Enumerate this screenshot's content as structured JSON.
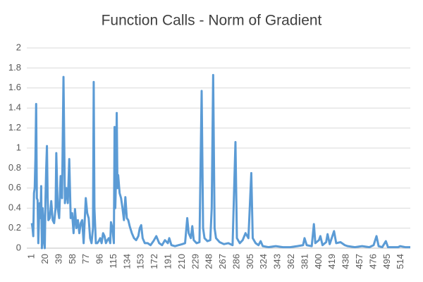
{
  "chart_data": {
    "type": "line",
    "title": "Function Calls - Norm of Gradient",
    "color": "#5b9bd5",
    "grid": true,
    "x": [
      1,
      2,
      3,
      4,
      5,
      6,
      7,
      8,
      9,
      10,
      11,
      12,
      13,
      14,
      15,
      16,
      17,
      18,
      19,
      20,
      21,
      22,
      23,
      24,
      26,
      28,
      30,
      32,
      34,
      35,
      37,
      39,
      41,
      43,
      45,
      47,
      49,
      51,
      53,
      55,
      57,
      59,
      61,
      63,
      65,
      67,
      69,
      71,
      73,
      74,
      76,
      78,
      80,
      82,
      84,
      86,
      87,
      88,
      90,
      92,
      94,
      96,
      98,
      100,
      102,
      104,
      106,
      108,
      110,
      111,
      113,
      115,
      116,
      117,
      118,
      119,
      120,
      121,
      123,
      125,
      127,
      129,
      131,
      133,
      135,
      137,
      140,
      143,
      146,
      149,
      151,
      153,
      155,
      158,
      162,
      166,
      170,
      174,
      178,
      182,
      186,
      190,
      192,
      195,
      200,
      205,
      210,
      214,
      217,
      219,
      222,
      224,
      226,
      230,
      234,
      237,
      239,
      241,
      245,
      249,
      251,
      253,
      255,
      257,
      262,
      268,
      274,
      280,
      284,
      286,
      290,
      294,
      298,
      302,
      306,
      308,
      312,
      316,
      319,
      322,
      330,
      340,
      350,
      360,
      370,
      378,
      380,
      383,
      390,
      393,
      395,
      400,
      402,
      405,
      410,
      412,
      415,
      421,
      424,
      430,
      436,
      440,
      450,
      460,
      470,
      476,
      480,
      483,
      488,
      493,
      496,
      500,
      510,
      513,
      520,
      527
    ],
    "values": [
      0.25,
      0.2,
      0.12,
      0.55,
      0.6,
      0.9,
      1.44,
      0.5,
      0.48,
      0.05,
      0.3,
      0.45,
      0.3,
      0.62,
      0.0,
      0.4,
      0.3,
      0.05,
      0.0,
      0.5,
      0.8,
      1.02,
      0.5,
      0.28,
      0.3,
      0.47,
      0.28,
      0.25,
      0.4,
      0.95,
      0.4,
      0.3,
      0.72,
      0.5,
      1.71,
      0.45,
      0.6,
      0.45,
      0.89,
      0.3,
      0.35,
      0.15,
      0.39,
      0.2,
      0.28,
      0.15,
      0.25,
      0.28,
      0.05,
      0.2,
      0.5,
      0.35,
      0.3,
      0.1,
      0.05,
      0.2,
      1.66,
      0.4,
      0.05,
      0.05,
      0.07,
      0.1,
      0.05,
      0.15,
      0.12,
      0.05,
      0.08,
      0.1,
      0.05,
      0.26,
      0.2,
      0.05,
      1.21,
      0.4,
      0.7,
      1.35,
      0.6,
      0.73,
      0.55,
      0.5,
      0.4,
      0.28,
      0.51,
      0.3,
      0.28,
      0.22,
      0.15,
      0.1,
      0.08,
      0.12,
      0.2,
      0.23,
      0.1,
      0.05,
      0.05,
      0.03,
      0.07,
      0.12,
      0.05,
      0.03,
      0.08,
      0.05,
      0.1,
      0.03,
      0.02,
      0.03,
      0.04,
      0.05,
      0.3,
      0.15,
      0.1,
      0.22,
      0.08,
      0.05,
      0.06,
      1.57,
      0.2,
      0.1,
      0.07,
      0.08,
      0.4,
      1.73,
      0.2,
      0.1,
      0.06,
      0.04,
      0.05,
      0.03,
      1.06,
      0.1,
      0.05,
      0.08,
      0.15,
      0.1,
      0.75,
      0.1,
      0.05,
      0.03,
      0.07,
      0.02,
      0.01,
      0.02,
      0.01,
      0.01,
      0.02,
      0.03,
      0.1,
      0.03,
      0.02,
      0.24,
      0.05,
      0.08,
      0.12,
      0.03,
      0.06,
      0.14,
      0.04,
      0.17,
      0.05,
      0.06,
      0.03,
      0.02,
      0.01,
      0.02,
      0.01,
      0.03,
      0.12,
      0.02,
      0.01,
      0.07,
      0.01,
      0.01,
      0.01,
      0.02,
      0.01,
      0.01
    ],
    "xlim": [
      -6,
      527
    ],
    "xticks": [
      1,
      20,
      39,
      58,
      77,
      96,
      115,
      134,
      153,
      172,
      191,
      210,
      229,
      248,
      267,
      286,
      305,
      324,
      343,
      362,
      381,
      400,
      419,
      438,
      457,
      476,
      495,
      514
    ],
    "ylim": [
      0,
      2
    ],
    "yticks": [
      0,
      0.2,
      0.4,
      0.6,
      0.8,
      1,
      1.2,
      1.4,
      1.6,
      1.8,
      2
    ]
  }
}
